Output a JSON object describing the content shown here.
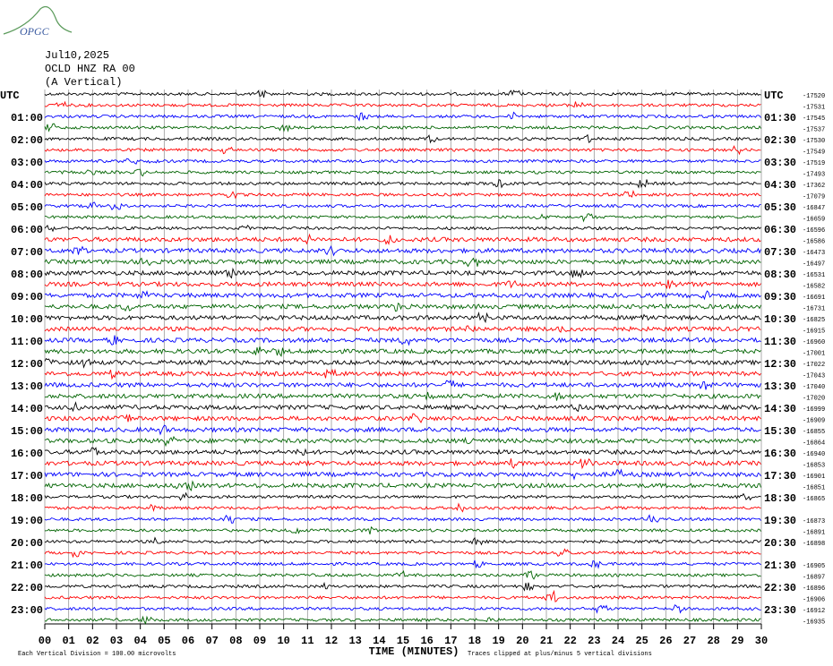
{
  "chart_data": {
    "type": "helicorder",
    "logo": "OPGC",
    "title_lines": [
      "Jul10,2025",
      "OCLD HNZ RA 00",
      "(A Vertical)"
    ],
    "left_labels": [
      "UTC",
      "01:00",
      "02:00",
      "03:00",
      "04:00",
      "05:00",
      "06:00",
      "07:00",
      "08:00",
      "09:00",
      "10:00",
      "11:00",
      "12:00",
      "13:00",
      "14:00",
      "15:00",
      "16:00",
      "17:00",
      "18:00",
      "19:00",
      "20:00",
      "21:00",
      "22:00",
      "23:00"
    ],
    "right_labels": [
      "UTC",
      "01:30",
      "02:30",
      "03:30",
      "04:30",
      "05:30",
      "06:30",
      "07:30",
      "08:30",
      "09:30",
      "10:30",
      "11:30",
      "12:30",
      "13:30",
      "14:30",
      "15:30",
      "16:30",
      "17:30",
      "18:30",
      "19:30",
      "20:30",
      "21:30",
      "22:30",
      "23:30"
    ],
    "trace_offsets": [
      -17520,
      -17531,
      -17545,
      -17537,
      -17530,
      -17549,
      -17519,
      -17493,
      -17362,
      -17079,
      -16847,
      -16659,
      -16596,
      -16586,
      -16473,
      -16497,
      -16531,
      -16582,
      -16691,
      -16731,
      -16825,
      -16915,
      -16960,
      -17001,
      -17022,
      -17043,
      -17040,
      -17020,
      -16999,
      -16909,
      -16855,
      -16864,
      -16940,
      -16853,
      -16901,
      -16851,
      -16865,
      null,
      -16873,
      -16891,
      -16898,
      null,
      -16905,
      -16897,
      -16896,
      -16906,
      -16912,
      -16935
    ],
    "colors": [
      "#000000",
      "#ff0000",
      "#0000ff",
      "#006400"
    ],
    "xlabel": "TIME (MINUTES)",
    "xlim": [
      0,
      30
    ],
    "xticks": [
      {
        "value": 0,
        "label": "00"
      },
      {
        "value": 1,
        "label": "01"
      },
      {
        "value": 2,
        "label": "02"
      },
      {
        "value": 3,
        "label": "03"
      },
      {
        "value": 4,
        "label": "04"
      },
      {
        "value": 5,
        "label": "05"
      },
      {
        "value": 6,
        "label": "06"
      },
      {
        "value": 7,
        "label": "07"
      },
      {
        "value": 8,
        "label": "08"
      },
      {
        "value": 9,
        "label": "09"
      },
      10,
      11,
      12,
      13,
      14,
      15,
      16,
      17,
      18,
      19,
      20,
      21,
      22,
      23,
      24,
      25,
      26,
      27,
      28,
      29,
      30
    ],
    "grid": true,
    "footer_left": "Each Vertical Division =  100.00 microvolts",
    "footer_right": "Traces clipped at plus/minus 5 vertical divisions"
  }
}
